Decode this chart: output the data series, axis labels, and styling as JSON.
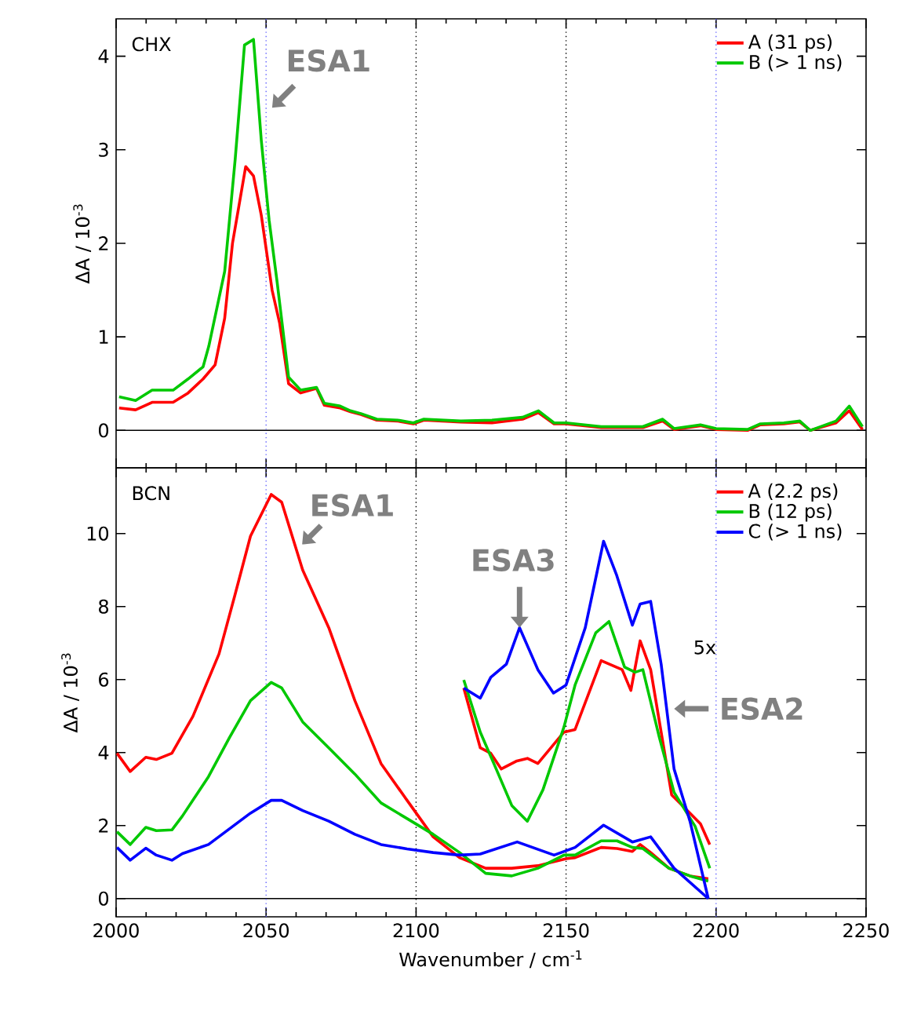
{
  "chart_data": [
    {
      "type": "line",
      "title": "CHX",
      "ylabel": "ΔA / 10$^{-3}$",
      "xlim": [
        2000,
        2250
      ],
      "ylim": [
        -0.4,
        4.4
      ],
      "xticks": [
        2000,
        2050,
        2100,
        2150,
        2200,
        2250
      ],
      "yticks": [
        0,
        1,
        2,
        3,
        4
      ],
      "tick_labels": "y",
      "legend": "top right",
      "series": [
        {
          "name": "A (31 ps)",
          "color": "#ff0000",
          "x": [
            2001,
            2006.5,
            2012,
            2019,
            2024,
            2029,
            2033,
            2036.2,
            2038.8,
            2043.2,
            2045.8,
            2048.4,
            2052,
            2054.5,
            2057.5,
            2061.5,
            2066.8,
            2069.4,
            2074.7,
            2078.1,
            2081.6,
            2086.9,
            2093.9,
            2099.1,
            2102.6,
            2114.9,
            2125.3,
            2135.5,
            2140.8,
            2146,
            2150,
            2161.7,
            2175.6,
            2182.2,
            2186,
            2194.8,
            2200,
            2210.5,
            2214.8,
            2222.6,
            2227.9,
            2231.4,
            2240,
            2244.4,
            2248.8
          ],
          "values": [
            0.24,
            0.22,
            0.3,
            0.3,
            0.4,
            0.55,
            0.7,
            1.2,
            2.0,
            2.82,
            2.72,
            2.3,
            1.5,
            1.15,
            0.5,
            0.4,
            0.45,
            0.27,
            0.24,
            0.2,
            0.17,
            0.11,
            0.1,
            0.07,
            0.11,
            0.09,
            0.08,
            0.12,
            0.19,
            0.07,
            0.07,
            0.03,
            0.03,
            0.1,
            0.01,
            0.05,
            0.01,
            0.0,
            0.06,
            0.07,
            0.09,
            0.0,
            0.08,
            0.21,
            0.01
          ]
        },
        {
          "name": "B (> 1 ns)",
          "color": "#00c800",
          "x": [
            2001,
            2006.5,
            2012,
            2019,
            2024,
            2029,
            2030.9,
            2036.2,
            2039.7,
            2042.8,
            2045.8,
            2048.4,
            2051,
            2053.7,
            2057.5,
            2061.5,
            2066.8,
            2069.4,
            2074.7,
            2078.1,
            2081.6,
            2086.9,
            2093.9,
            2099.1,
            2102.6,
            2114.9,
            2125.3,
            2135.5,
            2140.8,
            2146,
            2150,
            2161.7,
            2175.6,
            2182.2,
            2186,
            2194.8,
            2200,
            2210.5,
            2214.8,
            2222.6,
            2227.9,
            2231.4,
            2240,
            2244.4,
            2248.8
          ],
          "values": [
            0.36,
            0.32,
            0.43,
            0.43,
            0.55,
            0.68,
            0.9,
            1.7,
            2.9,
            4.12,
            4.18,
            3.1,
            2.25,
            1.58,
            0.57,
            0.43,
            0.46,
            0.29,
            0.26,
            0.21,
            0.18,
            0.12,
            0.11,
            0.08,
            0.12,
            0.1,
            0.11,
            0.14,
            0.21,
            0.08,
            0.08,
            0.04,
            0.04,
            0.12,
            0.02,
            0.06,
            0.02,
            0.01,
            0.07,
            0.08,
            0.1,
            0.0,
            0.1,
            0.26,
            0.04
          ]
        }
      ],
      "annotations": [
        {
          "text": "ESA1",
          "x": 2052,
          "y": 3.45
        }
      ],
      "ref_lines": [
        {
          "axis": "y",
          "value": 0,
          "color": "#000000",
          "line_style": "solid"
        },
        {
          "axis": "x",
          "value": 2050,
          "color": "#6464ff",
          "line_style": "dotted"
        },
        {
          "axis": "x",
          "value": 2100,
          "color": "#000000",
          "line_style": "dotted"
        },
        {
          "axis": "x",
          "value": 2150,
          "color": "#000000",
          "line_style": "dotted"
        },
        {
          "axis": "x",
          "value": 2200,
          "color": "#6464ff",
          "line_style": "dotted"
        }
      ]
    },
    {
      "type": "line",
      "title": "BCN",
      "xlabel": "Wavenumber / cm$^{-1}$",
      "ylabel": "ΔA / 10$^{-3}$",
      "xlim": [
        2000,
        2250
      ],
      "ylim": [
        -0.5,
        11.8
      ],
      "xticks": [
        2000,
        2050,
        2100,
        2150,
        2200,
        2250
      ],
      "yticks": [
        0,
        2,
        4,
        6,
        8,
        10
      ],
      "legend": "top right",
      "series": [
        {
          "name": "A (2.2 ps)",
          "color": "#ff0000",
          "x": [
            2000.3,
            2004.7,
            2009.9,
            2013.4,
            2018.6,
            2025.6,
            2034.3,
            2039.5,
            2044.8,
            2051.7,
            2055.2,
            2062.2,
            2070.9,
            2079.6,
            2088.3,
            2097,
            2105.7,
            2114.5,
            2123.2,
            2131.9,
            2140.6,
            2150,
            2153,
            2161.7,
            2167,
            2172.1,
            2174.7,
            2178.2,
            2184.3,
            2191.3,
            2197.4
          ],
          "values": [
            3.98,
            3.48,
            3.87,
            3.81,
            3.98,
            4.99,
            6.7,
            8.28,
            9.93,
            11.07,
            10.86,
            9.0,
            7.42,
            5.42,
            3.7,
            2.69,
            1.69,
            1.12,
            0.83,
            0.83,
            0.9,
            1.09,
            1.12,
            1.4,
            1.37,
            1.29,
            1.48,
            1.26,
            0.83,
            0.62,
            0.54
          ]
        },
        {
          "name": "B (12 ps)",
          "color": "#00c800",
          "x": [
            2000.3,
            2004.7,
            2009.9,
            2013.4,
            2018.6,
            2022.1,
            2030.8,
            2037.8,
            2044.8,
            2051.7,
            2055.2,
            2062.2,
            2070.9,
            2079.6,
            2088.3,
            2097,
            2105.7,
            2114.5,
            2123.2,
            2131.9,
            2140.6,
            2149.3,
            2153,
            2161.7,
            2167,
            2172.1,
            2175.6,
            2184.3,
            2191.3,
            2197.4
          ],
          "values": [
            1.83,
            1.48,
            1.95,
            1.86,
            1.88,
            2.26,
            3.34,
            4.41,
            5.42,
            5.92,
            5.77,
            4.84,
            4.13,
            3.41,
            2.62,
            2.19,
            1.76,
            1.26,
            0.69,
            0.62,
            0.83,
            1.19,
            1.19,
            1.58,
            1.58,
            1.4,
            1.37,
            0.83,
            0.62,
            0.48
          ]
        },
        {
          "name": "C (> 1 ns)",
          "color": "#0000ff",
          "x": [
            2000.3,
            2004.7,
            2009.9,
            2013.4,
            2018.6,
            2022.1,
            2030.8,
            2037.8,
            2044.8,
            2051.7,
            2055.2,
            2062.2,
            2070.9,
            2079.6,
            2088.3,
            2097,
            2105.7,
            2114.5,
            2121.4,
            2133.7,
            2146,
            2153,
            2162.5,
            2172.1,
            2178.2,
            2186,
            2197.4
          ],
          "values": [
            1.4,
            1.05,
            1.38,
            1.19,
            1.05,
            1.23,
            1.48,
            1.91,
            2.34,
            2.69,
            2.69,
            2.41,
            2.12,
            1.76,
            1.48,
            1.36,
            1.26,
            1.19,
            1.22,
            1.55,
            1.19,
            1.4,
            2.01,
            1.55,
            1.69,
            0.83,
            0.0
          ]
        },
        {
          "color": "#ff0000",
          "x": [
            2115.9,
            2121.4,
            2124.9,
            2128.4,
            2133.6,
            2137.1,
            2140.6,
            2149.3,
            2153,
            2161.7,
            2168.7,
            2171.6,
            2174.7,
            2178.2,
            2185.2,
            2191.3,
            2194.8,
            2197.9
          ],
          "values": [
            5.77,
            4.13,
            3.98,
            3.55,
            3.77,
            3.84,
            3.7,
            4.56,
            4.63,
            6.52,
            6.27,
            5.7,
            7.06,
            6.27,
            2.84,
            2.34,
            2.05,
            1.48
          ]
        },
        {
          "color": "#00c800",
          "x": [
            2115.9,
            2121.4,
            2126.7,
            2131.9,
            2137.1,
            2142.3,
            2149.3,
            2153,
            2159.9,
            2164.3,
            2169.5,
            2173,
            2175.6,
            2181.1,
            2186,
            2193,
            2197.9
          ],
          "values": [
            5.99,
            4.56,
            3.55,
            2.55,
            2.12,
            2.98,
            4.7,
            5.85,
            7.28,
            7.59,
            6.34,
            6.2,
            6.27,
            4.41,
            2.91,
            1.98,
            0.83
          ]
        },
        {
          "color": "#0000ff",
          "x": [
            2115.9,
            2121.4,
            2124.9,
            2130.1,
            2134.5,
            2140.6,
            2145.8,
            2150,
            2156.4,
            2162.5,
            2166.9,
            2172.1,
            2174.7,
            2178.2,
            2181.7,
            2186,
            2191.3,
            2197.4
          ],
          "values": [
            5.77,
            5.49,
            6.06,
            6.42,
            7.42,
            6.27,
            5.63,
            5.85,
            7.42,
            9.79,
            8.85,
            7.49,
            8.07,
            8.14,
            6.42,
            3.55,
            2.12,
            0.0
          ]
        }
      ],
      "annotations": [
        {
          "text": "ESA1",
          "x": 2062,
          "y": 9.7
        },
        {
          "text": "ESA3",
          "x": 2134.5,
          "y": 7.42
        },
        {
          "text": "ESA2",
          "x": 2186,
          "y": 5.2
        },
        "5x"
      ],
      "ref_lines": [
        {
          "axis": "y",
          "value": 0,
          "color": "#000000",
          "line_style": "solid"
        },
        {
          "axis": "x",
          "value": 2050,
          "color": "#6464ff",
          "line_style": "dotted"
        },
        {
          "axis": "x",
          "value": 2100,
          "color": "#000000",
          "line_style": "dotted"
        },
        {
          "axis": "x",
          "value": 2150,
          "color": "#000000",
          "line_style": "dotted"
        },
        {
          "axis": "x",
          "value": 2200,
          "color": "#6464ff",
          "line_style": "dotted"
        }
      ]
    }
  ]
}
